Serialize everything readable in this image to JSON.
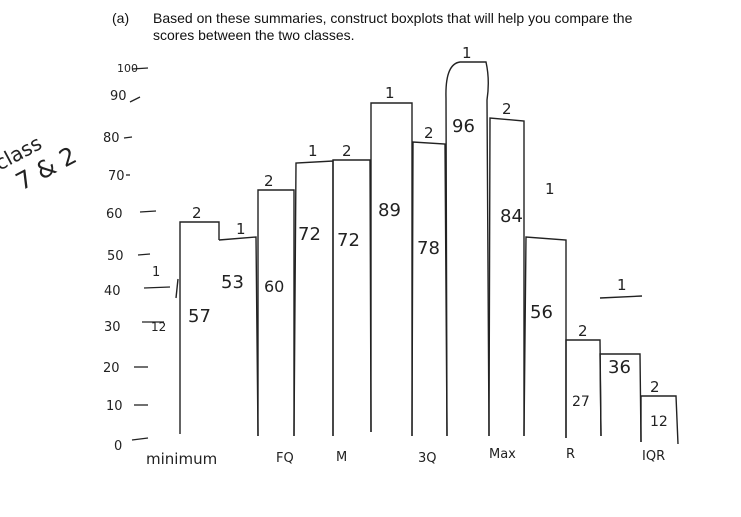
{
  "question": {
    "part_label": "(a)",
    "line1": "Based on these summaries, construct boxplots that will help you compare the",
    "line2": "scores between the two classes."
  },
  "margin_note": {
    "line1": "class",
    "line2": "7 & 2"
  },
  "axis": {
    "tick_labels": [
      "0",
      "10",
      "20",
      "30",
      "40",
      "50",
      "60",
      "70",
      "80",
      "90",
      "100"
    ],
    "annotation_30": "12"
  },
  "bars": [
    {
      "key": "a",
      "value_label": "57",
      "count_label": "2"
    },
    {
      "key": "b",
      "value_label": "53",
      "count_label": "1"
    },
    {
      "key": "c",
      "value_label": "60",
      "count_label": "2"
    },
    {
      "key": "d",
      "value_label": "72",
      "count_label": "1"
    },
    {
      "key": "e",
      "value_label": "72",
      "count_label": "2"
    },
    {
      "key": "f",
      "value_label": "89",
      "count_label": "1"
    },
    {
      "key": "g",
      "value_label": "78",
      "count_label": "2"
    },
    {
      "key": "h",
      "value_label": "96",
      "count_label": "1"
    },
    {
      "key": "i",
      "value_label": "84",
      "count_label": "2"
    },
    {
      "key": "j",
      "value_label": "56",
      "count_label": "1"
    },
    {
      "key": "k",
      "value_label": "27",
      "count_label": "2"
    },
    {
      "key": "l",
      "value_label": "36",
      "count_label": "1"
    },
    {
      "key": "m",
      "value_label": "12",
      "count_label": "2"
    }
  ],
  "floating_one": "1",
  "bottom_labels": [
    "minimum",
    "FQ",
    "M",
    "3Q",
    "Max",
    "R",
    "IQR"
  ]
}
